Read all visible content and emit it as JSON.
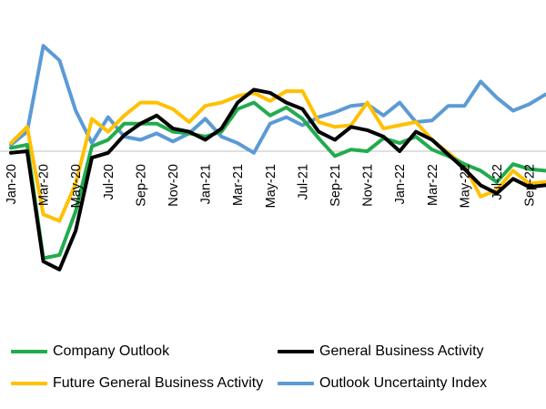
{
  "chart_data": {
    "type": "line",
    "x": [
      "Jan-20",
      "Feb-20",
      "Mar-20",
      "Apr-20",
      "May-20",
      "Jun-20",
      "Jul-20",
      "Aug-20",
      "Sep-20",
      "Oct-20",
      "Nov-20",
      "Dec-20",
      "Jan-21",
      "Feb-21",
      "Mar-21",
      "Apr-21",
      "May-21",
      "Jun-21",
      "Jul-21",
      "Aug-21",
      "Sep-21",
      "Oct-21",
      "Nov-21",
      "Dec-21",
      "Jan-22",
      "Feb-22",
      "Mar-22",
      "Apr-22",
      "May-22",
      "Jun-22",
      "Jul-22",
      "Aug-22",
      "Sep-22",
      "Oct-22"
    ],
    "tick_labels": [
      "Jan-20",
      "Mar-20",
      "May-20",
      "Jul-20",
      "Sep-20",
      "Nov-20",
      "Jan-21",
      "Mar-21",
      "May-21",
      "Jul-21",
      "Sep-21",
      "Nov-21",
      "Jan-22",
      "Mar-22",
      "May-22",
      "Jul-22",
      "Sep-22"
    ],
    "ylim": [
      -80,
      80
    ],
    "baseline": 0,
    "legend_placement": "bottom",
    "grid": false,
    "series": [
      {
        "name": "Company Outlook",
        "color": "#22ab4e",
        "values": [
          2,
          4,
          -66,
          -64,
          -37,
          3,
          7,
          17,
          17,
          17,
          12,
          11,
          9,
          12,
          26,
          30,
          22,
          27,
          20,
          8,
          -3,
          1,
          0,
          8,
          5,
          9,
          1,
          -3,
          -8,
          -12,
          -19,
          -8,
          -11,
          -12
        ]
      },
      {
        "name": "General Business Activity",
        "color": "#000000",
        "values": [
          -1,
          0,
          -68,
          -73,
          -49,
          -4,
          -1,
          10,
          17,
          22,
          14,
          12,
          7,
          14,
          30,
          38,
          36,
          30,
          26,
          12,
          7,
          15,
          13,
          9,
          0,
          12,
          7,
          -2,
          -11,
          -21,
          -26,
          -17,
          -22,
          -21
        ]
      },
      {
        "name": "Future General Business Activity",
        "color": "#ffc000",
        "values": [
          5,
          15,
          -39,
          -43,
          -20,
          20,
          12,
          22,
          30,
          30,
          26,
          18,
          28,
          30,
          34,
          36,
          31,
          37,
          37,
          18,
          15,
          16,
          30,
          14,
          16,
          18,
          7,
          -1,
          -9,
          -28,
          -24,
          -12,
          -20,
          -19
        ]
      },
      {
        "name": "Outlook Uncertainty Index",
        "color": "#5b9bd5",
        "values": [
          4,
          12,
          65,
          56,
          25,
          5,
          21,
          9,
          7,
          11,
          6,
          11,
          20,
          9,
          5,
          -1,
          17,
          21,
          16,
          21,
          24,
          28,
          29,
          22,
          30,
          18,
          19,
          28,
          28,
          43,
          33,
          25,
          29,
          35
        ]
      }
    ]
  }
}
